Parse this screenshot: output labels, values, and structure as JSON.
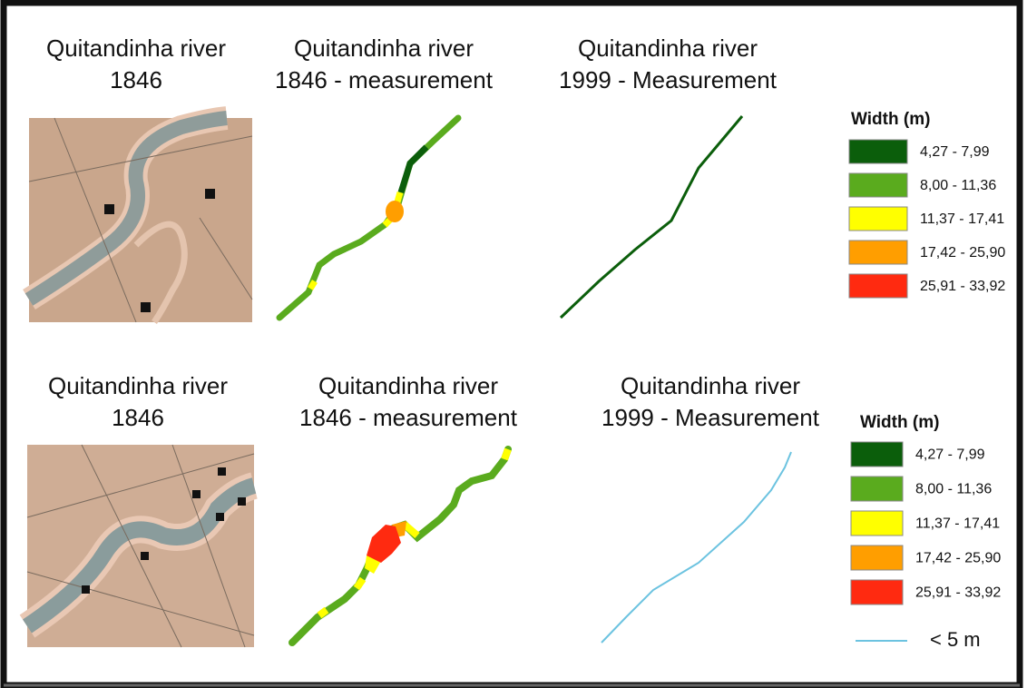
{
  "rows": [
    {
      "titles": [
        [
          "Quitandinha river",
          "1846"
        ],
        [
          "Quitandinha river",
          "1846 - measurement"
        ],
        [
          "Quitandinha river",
          "1999 - Measurement"
        ]
      ],
      "legend": {
        "title": "Width (m)",
        "entries": [
          {
            "label": "4,27 - 7,99",
            "color": "#0b5e0b"
          },
          {
            "label": "8,00 - 11,36",
            "color": "#5aab1e"
          },
          {
            "label": "11,37 - 17,41",
            "color": "#ffff00"
          },
          {
            "label": "17,42 - 25,90",
            "color": "#ff9e00"
          },
          {
            "label": "25,91 - 33,92",
            "color": "#ff2a10"
          }
        ]
      }
    },
    {
      "titles": [
        [
          "Quitandinha river",
          "1846"
        ],
        [
          "Quitandinha river",
          "1846 - measurement"
        ],
        [
          "Quitandinha river",
          "1999 - Measurement"
        ]
      ],
      "legend": {
        "title": "Width (m)",
        "entries": [
          {
            "label": "4,27 - 7,99",
            "color": "#0b5e0b"
          },
          {
            "label": "8,00 - 11,36",
            "color": "#5aab1e"
          },
          {
            "label": "11,37 - 17,41",
            "color": "#ffff00"
          },
          {
            "label": "17,42 - 25,90",
            "color": "#ff9e00"
          },
          {
            "label": "25,91 - 33,92",
            "color": "#ff2a10"
          }
        ],
        "line_entry": {
          "label": "< 5 m",
          "color": "#6cc3e0"
        }
      }
    }
  ]
}
